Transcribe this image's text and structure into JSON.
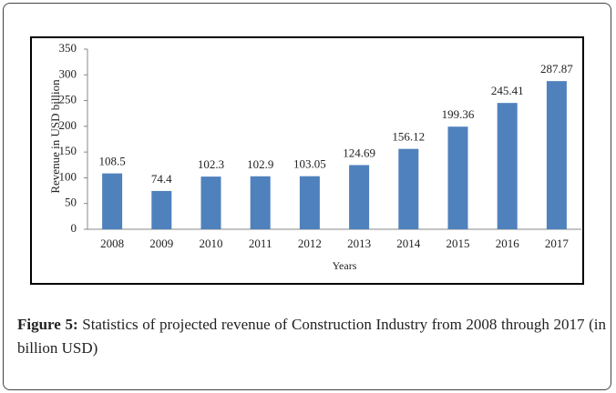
{
  "chart_data": {
    "type": "bar",
    "categories": [
      "2008",
      "2009",
      "2010",
      "2011",
      "2012",
      "2013",
      "2014",
      "2015",
      "2016",
      "2017"
    ],
    "values": [
      108.5,
      74.4,
      102.3,
      102.9,
      103.05,
      124.69,
      156.12,
      199.36,
      245.41,
      287.87
    ],
    "color": "#4f81bd",
    "ylim": [
      0,
      350
    ],
    "yticks": [
      0,
      50,
      100,
      150,
      200,
      250,
      300,
      350
    ],
    "xlabel": "Years",
    "ylabel": "Revenue in USD billion",
    "grid": false
  },
  "caption": {
    "label": "Figure 5:",
    "text": "Statistics of projected revenue of Construction Industry from 2008 through 2017 (in billion USD)"
  }
}
